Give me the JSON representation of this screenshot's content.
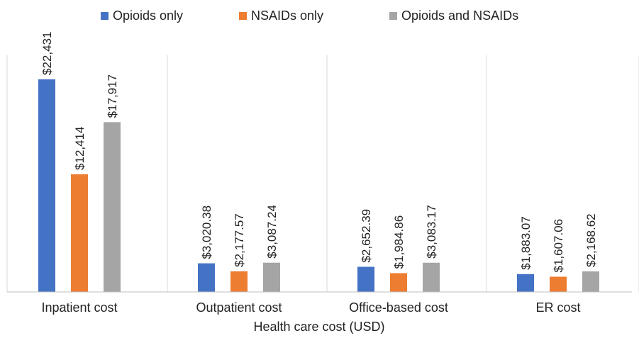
{
  "chart_data": {
    "type": "bar",
    "title": "",
    "xlabel": "Health care cost  (USD)",
    "ylabel": "",
    "ylim": [
      0,
      25000
    ],
    "grid": false,
    "legend_position": "top-center",
    "categories": [
      "Inpatient cost",
      "Outpatient cost",
      "Office-based cost",
      "ER cost"
    ],
    "series": [
      {
        "name": "Opioids only",
        "color": "#4472C4",
        "values": [
          22431,
          3020.38,
          2652.39,
          1883.07
        ],
        "labels": [
          "$22,431",
          "$3,020.38",
          "$2,652.39",
          "$1,883.07"
        ]
      },
      {
        "name": "NSAIDs only",
        "color": "#ED7D31",
        "values": [
          12414,
          2177.57,
          1984.86,
          1607.06
        ],
        "labels": [
          "$12,414",
          "$2,177.57",
          "$1,984.86",
          "$1,607.06"
        ]
      },
      {
        "name": "Opioids and NSAIDs",
        "color": "#A5A5A5",
        "values": [
          17917,
          3087.24,
          3083.17,
          2168.62
        ],
        "labels": [
          "$17,917",
          "$3,087.24",
          "$3,083.17",
          "$2,168.62"
        ]
      }
    ]
  }
}
